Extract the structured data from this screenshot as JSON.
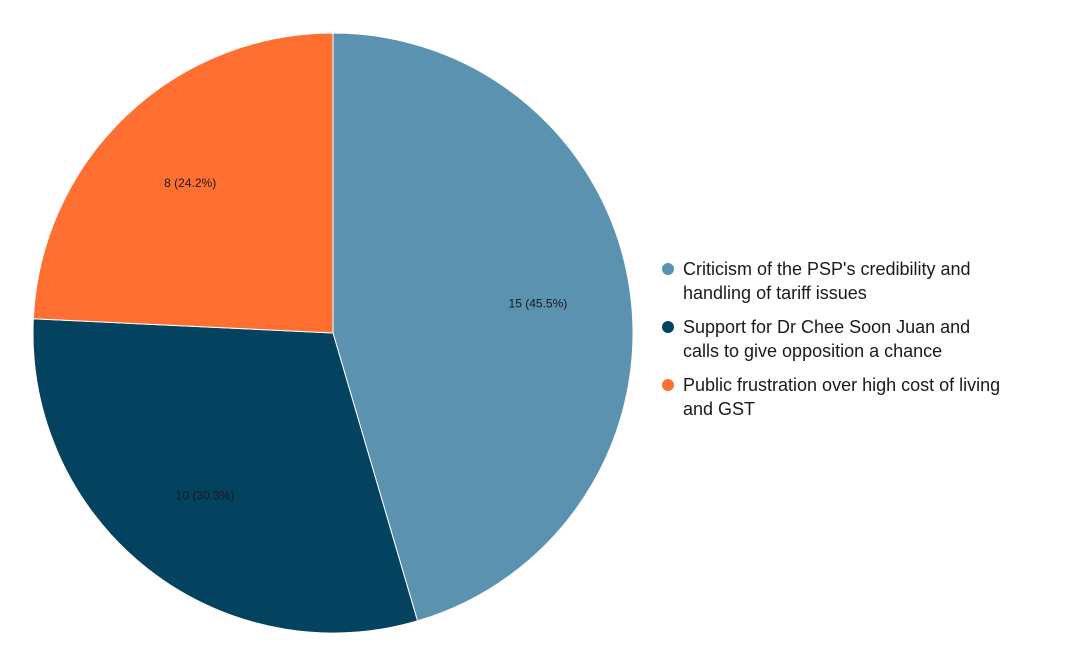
{
  "chart_data": {
    "type": "pie",
    "slices": [
      {
        "name": "Criticism of the PSP's credibility and handling of tariff issues",
        "legend_lines": [
          "Criticism of the PSP's credibility and",
          "handling of tariff issues"
        ],
        "value": 15,
        "label": "15 (45.5%)",
        "color": "#5a92af"
      },
      {
        "name": "Support for Dr Chee Soon Juan and calls to give opposition a chance",
        "legend_lines": [
          "Support for Dr Chee Soon Juan and",
          "calls to give opposition a chance"
        ],
        "value": 10,
        "label": "10 (30.3%)",
        "color": "#03435f"
      },
      {
        "name": "Public frustration over high cost of living and GST",
        "legend_lines": [
          "Public frustration over high cost of living",
          "and GST"
        ],
        "value": 8,
        "label": "8 (24.2%)",
        "color": "#ff6f31"
      }
    ],
    "start_angle": "top",
    "direction": "clockwise",
    "legend_position": "right"
  }
}
